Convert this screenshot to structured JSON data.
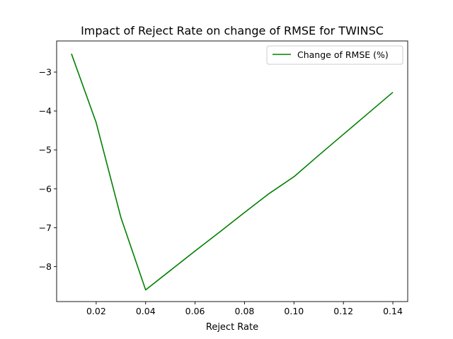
{
  "chart_data": {
    "type": "line",
    "title": "Impact of Reject Rate on change of RMSE for TWINSC",
    "xlabel": "Reject Rate",
    "ylabel": "",
    "xlim": [
      0.004,
      0.146
    ],
    "ylim": [
      -8.9,
      -2.2
    ],
    "x_ticks": [
      0.02,
      0.04,
      0.06,
      0.08,
      0.1,
      0.12,
      0.14
    ],
    "x_tick_labels": [
      "0.02",
      "0.04",
      "0.06",
      "0.08",
      "0.10",
      "0.12",
      "0.14"
    ],
    "y_ticks": [
      -3,
      -4,
      -5,
      -6,
      -7,
      -8
    ],
    "y_tick_labels": [
      "−3",
      "−4",
      "−5",
      "−6",
      "−7",
      "−8"
    ],
    "grid": false,
    "legend_position": "top-right",
    "series": [
      {
        "name": "Change of RMSE (%)",
        "color": "#008000",
        "x": [
          0.01,
          0.02,
          0.03,
          0.04,
          0.05,
          0.06,
          0.07,
          0.08,
          0.09,
          0.1,
          0.11,
          0.12,
          0.13,
          0.14
        ],
        "y": [
          -2.53,
          -4.3,
          -6.74,
          -8.6,
          -8.1,
          -7.6,
          -7.11,
          -6.61,
          -6.12,
          -5.69,
          -5.14,
          -4.6,
          -4.06,
          -3.52
        ]
      }
    ]
  }
}
